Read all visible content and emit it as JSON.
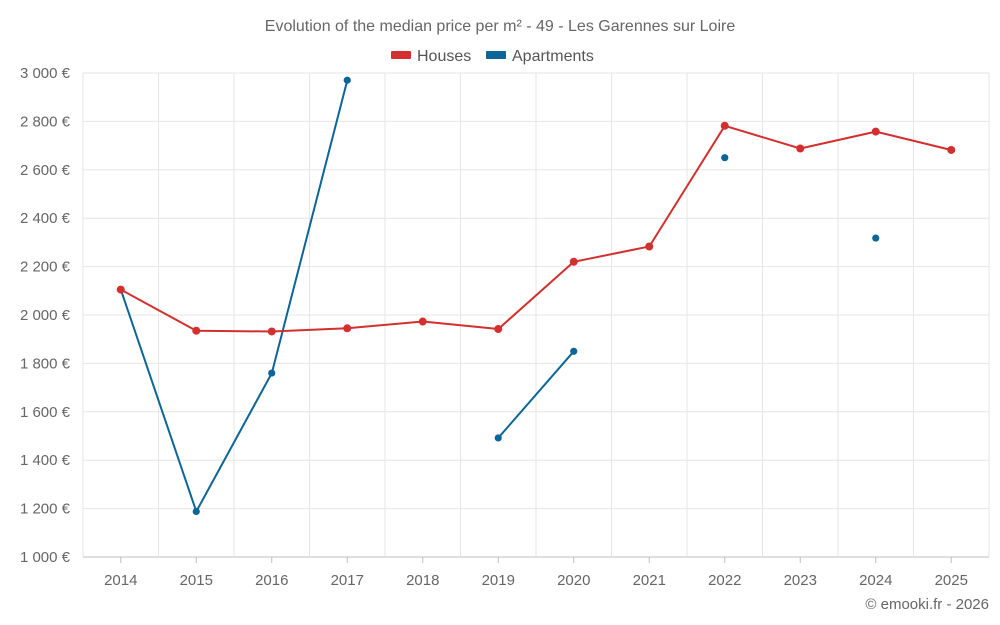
{
  "chart_data": {
    "type": "line",
    "title": "Evolution of the median price per m² - 49 - Les Garennes sur Loire",
    "categories": [
      "2014",
      "2015",
      "2016",
      "2017",
      "2018",
      "2019",
      "2020",
      "2021",
      "2022",
      "2023",
      "2024",
      "2025"
    ],
    "y_ticks": [
      1000,
      1200,
      1400,
      1600,
      1800,
      2000,
      2200,
      2400,
      2600,
      2800,
      3000
    ],
    "y_tick_labels": [
      "1 000 €",
      "1 200 €",
      "1 400 €",
      "1 600 €",
      "1 800 €",
      "2 000 €",
      "2 200 €",
      "2 400 €",
      "2 600 €",
      "2 800 €",
      "3 000 €"
    ],
    "ylim": [
      1000,
      3000
    ],
    "grid": true,
    "legend_position": "top-center",
    "series": [
      {
        "name": "Houses",
        "color": "#d32f2f",
        "values": [
          2105,
          1935,
          1932,
          1945,
          1973,
          1942,
          2220,
          2283,
          2782,
          2688,
          2758,
          2682
        ]
      },
      {
        "name": "Apartments",
        "color": "#0b6596",
        "values": [
          2105,
          1188,
          1760,
          2970,
          null,
          1492,
          1850,
          null,
          2650,
          null,
          2318,
          null
        ]
      }
    ]
  },
  "credit": "© emooki.fr - 2026"
}
